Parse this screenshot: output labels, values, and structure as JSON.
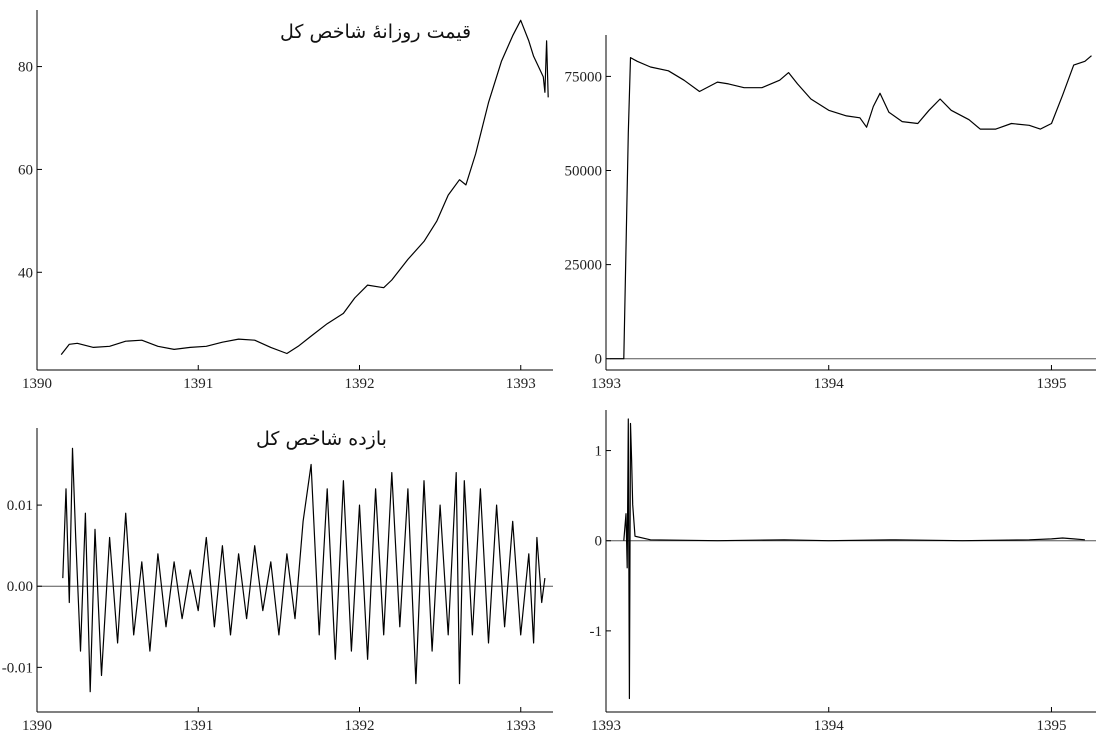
{
  "chart_data": [
    {
      "id": "top-left",
      "type": "line",
      "title": "قیمت روزانهٔ شاخص کل",
      "xlim": [
        1390,
        1393.2
      ],
      "ylim": [
        21,
        91
      ],
      "x_ticks": [
        1390,
        1391,
        1392,
        1393
      ],
      "y_ticks": [
        40,
        60,
        80
      ],
      "zero_line": false,
      "series": [
        {
          "points": [
            [
              1390.15,
              24
            ],
            [
              1390.2,
              26
            ],
            [
              1390.25,
              26.2
            ],
            [
              1390.35,
              25.4
            ],
            [
              1390.45,
              25.6
            ],
            [
              1390.55,
              26.6
            ],
            [
              1390.65,
              26.8
            ],
            [
              1390.75,
              25.6
            ],
            [
              1390.85,
              25.0
            ],
            [
              1390.95,
              25.4
            ],
            [
              1391.05,
              25.6
            ],
            [
              1391.15,
              26.4
            ],
            [
              1391.25,
              27.0
            ],
            [
              1391.35,
              26.8
            ],
            [
              1391.45,
              25.4
            ],
            [
              1391.55,
              24.2
            ],
            [
              1391.62,
              25.6
            ],
            [
              1391.7,
              27.6
            ],
            [
              1391.8,
              30.0
            ],
            [
              1391.9,
              32.0
            ],
            [
              1391.97,
              35.0
            ],
            [
              1392.05,
              37.5
            ],
            [
              1392.15,
              37.0
            ],
            [
              1392.2,
              38.5
            ],
            [
              1392.3,
              42.5
            ],
            [
              1392.4,
              46.0
            ],
            [
              1392.48,
              50.0
            ],
            [
              1392.55,
              55.0
            ],
            [
              1392.62,
              58.0
            ],
            [
              1392.66,
              57.0
            ],
            [
              1392.72,
              63.0
            ],
            [
              1392.8,
              73.0
            ],
            [
              1392.88,
              81.0
            ],
            [
              1392.95,
              86.0
            ],
            [
              1393.0,
              89.0
            ],
            [
              1393.05,
              85.0
            ],
            [
              1393.08,
              82.0
            ],
            [
              1393.11,
              80.0
            ],
            [
              1393.14,
              78.0
            ],
            [
              1393.15,
              75.0
            ],
            [
              1393.16,
              85.0
            ],
            [
              1393.17,
              74.0
            ]
          ]
        }
      ]
    },
    {
      "id": "top-right",
      "type": "line",
      "title": "",
      "xlim": [
        1393,
        1395.2
      ],
      "ylim": [
        -3000,
        86000
      ],
      "x_ticks": [
        1393,
        1394,
        1395
      ],
      "y_ticks": [
        0,
        25000,
        50000,
        75000
      ],
      "zero_line": true,
      "series": [
        {
          "points": [
            [
              1393.02,
              0
            ],
            [
              1393.08,
              0
            ],
            [
              1393.1,
              60000
            ],
            [
              1393.11,
              80000
            ],
            [
              1393.14,
              79000
            ],
            [
              1393.2,
              77500
            ],
            [
              1393.28,
              76500
            ],
            [
              1393.35,
              74000
            ],
            [
              1393.42,
              71000
            ],
            [
              1393.5,
              73500
            ],
            [
              1393.55,
              73000
            ],
            [
              1393.62,
              72000
            ],
            [
              1393.7,
              72000
            ],
            [
              1393.78,
              74000
            ],
            [
              1393.82,
              76000
            ],
            [
              1393.86,
              73000
            ],
            [
              1393.92,
              69000
            ],
            [
              1394.0,
              66000
            ],
            [
              1394.08,
              64500
            ],
            [
              1394.14,
              64000
            ],
            [
              1394.17,
              61500
            ],
            [
              1394.2,
              67000
            ],
            [
              1394.23,
              70500
            ],
            [
              1394.27,
              65500
            ],
            [
              1394.33,
              63000
            ],
            [
              1394.4,
              62500
            ],
            [
              1394.45,
              66000
            ],
            [
              1394.5,
              69000
            ],
            [
              1394.55,
              66000
            ],
            [
              1394.63,
              63500
            ],
            [
              1394.68,
              61000
            ],
            [
              1394.75,
              61000
            ],
            [
              1394.82,
              62500
            ],
            [
              1394.9,
              62000
            ],
            [
              1394.95,
              61000
            ],
            [
              1395.0,
              62500
            ],
            [
              1395.05,
              70000
            ],
            [
              1395.1,
              78000
            ],
            [
              1395.15,
              79000
            ],
            [
              1395.18,
              80500
            ]
          ]
        }
      ]
    },
    {
      "id": "bottom-left",
      "type": "line",
      "title": "بازده شاخص کل",
      "xlim": [
        1390,
        1393.2
      ],
      "ylim": [
        -0.0155,
        0.0195
      ],
      "x_ticks": [
        1390,
        1391,
        1392,
        1393
      ],
      "y_ticks": [
        -0.01,
        0.0,
        0.01
      ],
      "y_tick_labels": [
        "-0.01",
        "0.00",
        "0.01"
      ],
      "zero_line": true,
      "series": [
        {
          "points": [
            [
              1390.16,
              0.001
            ],
            [
              1390.18,
              0.012
            ],
            [
              1390.2,
              -0.002
            ],
            [
              1390.22,
              0.017
            ],
            [
              1390.24,
              0.006
            ],
            [
              1390.27,
              -0.008
            ],
            [
              1390.3,
              0.009
            ],
            [
              1390.33,
              -0.013
            ],
            [
              1390.36,
              0.007
            ],
            [
              1390.4,
              -0.011
            ],
            [
              1390.45,
              0.006
            ],
            [
              1390.5,
              -0.007
            ],
            [
              1390.55,
              0.009
            ],
            [
              1390.6,
              -0.006
            ],
            [
              1390.65,
              0.003
            ],
            [
              1390.7,
              -0.008
            ],
            [
              1390.75,
              0.004
            ],
            [
              1390.8,
              -0.005
            ],
            [
              1390.85,
              0.003
            ],
            [
              1390.9,
              -0.004
            ],
            [
              1390.95,
              0.002
            ],
            [
              1391.0,
              -0.003
            ],
            [
              1391.05,
              0.006
            ],
            [
              1391.1,
              -0.005
            ],
            [
              1391.15,
              0.005
            ],
            [
              1391.2,
              -0.006
            ],
            [
              1391.25,
              0.004
            ],
            [
              1391.3,
              -0.004
            ],
            [
              1391.35,
              0.005
            ],
            [
              1391.4,
              -0.003
            ],
            [
              1391.45,
              0.003
            ],
            [
              1391.5,
              -0.006
            ],
            [
              1391.55,
              0.004
            ],
            [
              1391.6,
              -0.004
            ],
            [
              1391.65,
              0.008
            ],
            [
              1391.7,
              0.015
            ],
            [
              1391.75,
              -0.006
            ],
            [
              1391.8,
              0.012
            ],
            [
              1391.85,
              -0.009
            ],
            [
              1391.9,
              0.013
            ],
            [
              1391.95,
              -0.008
            ],
            [
              1392.0,
              0.01
            ],
            [
              1392.05,
              -0.009
            ],
            [
              1392.1,
              0.012
            ],
            [
              1392.15,
              -0.006
            ],
            [
              1392.2,
              0.014
            ],
            [
              1392.25,
              -0.005
            ],
            [
              1392.3,
              0.012
            ],
            [
              1392.35,
              -0.012
            ],
            [
              1392.4,
              0.013
            ],
            [
              1392.45,
              -0.008
            ],
            [
              1392.5,
              0.01
            ],
            [
              1392.55,
              -0.006
            ],
            [
              1392.6,
              0.014
            ],
            [
              1392.62,
              -0.012
            ],
            [
              1392.65,
              0.013
            ],
            [
              1392.7,
              -0.006
            ],
            [
              1392.75,
              0.012
            ],
            [
              1392.8,
              -0.007
            ],
            [
              1392.85,
              0.01
            ],
            [
              1392.9,
              -0.005
            ],
            [
              1392.95,
              0.008
            ],
            [
              1393.0,
              -0.006
            ],
            [
              1393.05,
              0.004
            ],
            [
              1393.08,
              -0.007
            ],
            [
              1393.1,
              0.006
            ],
            [
              1393.13,
              -0.002
            ],
            [
              1393.15,
              0.001
            ]
          ]
        }
      ]
    },
    {
      "id": "bottom-right",
      "type": "line",
      "title": "",
      "xlim": [
        1393,
        1395.2
      ],
      "ylim": [
        -1.9,
        1.45
      ],
      "x_ticks": [
        1393,
        1394,
        1395
      ],
      "y_ticks": [
        -1,
        0,
        1
      ],
      "zero_line": true,
      "series": [
        {
          "points": [
            [
              1393.08,
              0.0
            ],
            [
              1393.09,
              0.3
            ],
            [
              1393.095,
              -0.3
            ],
            [
              1393.1,
              1.35
            ],
            [
              1393.105,
              -1.75
            ],
            [
              1393.11,
              1.3
            ],
            [
              1393.115,
              0.9
            ],
            [
              1393.12,
              0.4
            ],
            [
              1393.13,
              0.05
            ],
            [
              1393.2,
              0.01
            ],
            [
              1393.5,
              0.0
            ],
            [
              1393.8,
              0.01
            ],
            [
              1394.0,
              0.0
            ],
            [
              1394.3,
              0.01
            ],
            [
              1394.6,
              0.0
            ],
            [
              1394.9,
              0.01
            ],
            [
              1395.0,
              0.02
            ],
            [
              1395.05,
              0.03
            ],
            [
              1395.1,
              0.02
            ],
            [
              1395.15,
              0.01
            ]
          ]
        }
      ]
    }
  ]
}
